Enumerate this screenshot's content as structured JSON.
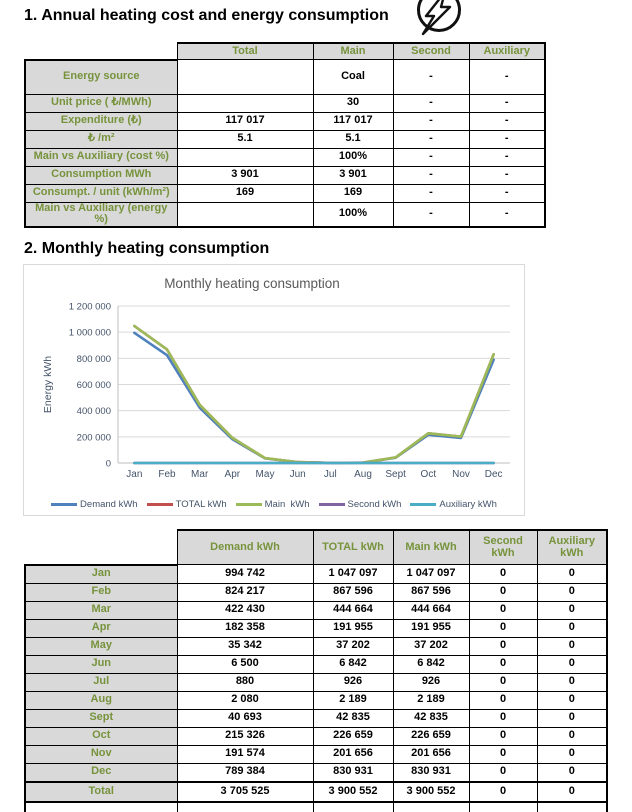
{
  "colors": {
    "label_text_green": "#77933C",
    "label_bg_gray": "#D9D9D9",
    "table_border": "#000000",
    "chart_border": "#D9D9D9"
  },
  "section1": {
    "title": "1. Annual heating cost and energy consumption",
    "icon": "lightning-bolt-in-circle"
  },
  "table1": {
    "col_headers": [
      "Total",
      "Main",
      "Second",
      "Auxiliary"
    ],
    "rows": [
      {
        "label": "Energy source",
        "values": [
          "",
          "Coal",
          "-",
          "-"
        ]
      },
      {
        "label": "Unit price ( ₺/MWh)",
        "values": [
          "",
          "30",
          "-",
          "-"
        ]
      },
      {
        "label": "Expenditure (₺)",
        "values": [
          "117 017",
          "117 017",
          "-",
          "-"
        ]
      },
      {
        "label": "₺ /m²",
        "values": [
          "5.1",
          "5.1",
          "-",
          "-"
        ]
      },
      {
        "label": "Main vs Auxiliary (cost %)",
        "values": [
          "",
          "100%",
          "-",
          "-"
        ]
      },
      {
        "label": "Consumption MWh",
        "values": [
          "3 901",
          "3 901",
          "-",
          "-"
        ]
      },
      {
        "label": "Consumpt. / unit (kWh/m²)",
        "values": [
          "169",
          "169",
          "-",
          "-"
        ]
      },
      {
        "label": "Main vs Auxiliary (energy %)",
        "values": [
          "",
          "100%",
          "-",
          "-"
        ]
      }
    ]
  },
  "section2": {
    "title": "2. Monthly heating consumption"
  },
  "chart_data": {
    "type": "line",
    "title": "Monthly heating  consumption",
    "ylabel": "Energy kWh",
    "categories": [
      "Jan",
      "Feb",
      "Mar",
      "Apr",
      "May",
      "Jun",
      "Jul",
      "Aug",
      "Sept",
      "Oct",
      "Nov",
      "Dec"
    ],
    "series": [
      {
        "name": "Demand kWh",
        "color": "#4F81BD",
        "values": [
          994742,
          824217,
          422430,
          182358,
          35342,
          6500,
          880,
          2080,
          40693,
          215326,
          191574,
          789384
        ]
      },
      {
        "name": "TOTAL kWh",
        "color": "#C0504D",
        "values": [
          1047097,
          867596,
          444664,
          191955,
          37202,
          6842,
          926,
          2189,
          42835,
          226659,
          201656,
          830931
        ]
      },
      {
        "name": "Main  kWh",
        "color": "#9BBB59",
        "values": [
          1047097,
          867596,
          444664,
          191955,
          37202,
          6842,
          926,
          2189,
          42835,
          226659,
          201656,
          830931
        ]
      },
      {
        "name": "Second kWh",
        "color": "#8064A2",
        "values": [
          0,
          0,
          0,
          0,
          0,
          0,
          0,
          0,
          0,
          0,
          0,
          0
        ]
      },
      {
        "name": "Auxiliary kWh",
        "color": "#4BACC6",
        "values": [
          0,
          0,
          0,
          0,
          0,
          0,
          0,
          0,
          0,
          0,
          0,
          0
        ]
      }
    ],
    "ylim": [
      0,
      1200000
    ],
    "ytick_step": 200000,
    "yticks": [
      0,
      200000,
      400000,
      600000,
      800000,
      1000000,
      1200000
    ],
    "grid": true,
    "legend_position": "bottom",
    "title_color": "#595959",
    "axis_text_color": "#44546A",
    "grid_color": "#D9D9D9",
    "axis_line_color": "#BFBFBF"
  },
  "table2": {
    "col_headers": [
      "Demand kWh",
      "TOTAL kWh",
      "Main  kWh",
      "Second kWh",
      "Auxiliary kWh"
    ],
    "rows": [
      {
        "label": "Jan",
        "values": [
          "994 742",
          "1 047 097",
          "1 047 097",
          "0",
          "0"
        ]
      },
      {
        "label": "Feb",
        "values": [
          "824 217",
          "867 596",
          "867 596",
          "0",
          "0"
        ]
      },
      {
        "label": "Mar",
        "values": [
          "422 430",
          "444 664",
          "444 664",
          "0",
          "0"
        ]
      },
      {
        "label": "Apr",
        "values": [
          "182 358",
          "191 955",
          "191 955",
          "0",
          "0"
        ]
      },
      {
        "label": "May",
        "values": [
          "35 342",
          "37 202",
          "37 202",
          "0",
          "0"
        ]
      },
      {
        "label": "Jun",
        "values": [
          "6 500",
          "6 842",
          "6 842",
          "0",
          "0"
        ]
      },
      {
        "label": "Jul",
        "values": [
          "880",
          "926",
          "926",
          "0",
          "0"
        ]
      },
      {
        "label": "Aug",
        "values": [
          "2 080",
          "2 189",
          "2 189",
          "0",
          "0"
        ]
      },
      {
        "label": "Sept",
        "values": [
          "40 693",
          "42 835",
          "42 835",
          "0",
          "0"
        ]
      },
      {
        "label": "Oct",
        "values": [
          "215 326",
          "226 659",
          "226 659",
          "0",
          "0"
        ]
      },
      {
        "label": "Nov",
        "values": [
          "191 574",
          "201 656",
          "201 656",
          "0",
          "0"
        ]
      },
      {
        "label": "Dec",
        "values": [
          "789 384",
          "830 931",
          "830 931",
          "0",
          "0"
        ]
      }
    ],
    "total_row": {
      "label": "Total",
      "values": [
        "3 705 525",
        "3 900 552",
        "3 900 552",
        "0",
        "0"
      ]
    }
  }
}
